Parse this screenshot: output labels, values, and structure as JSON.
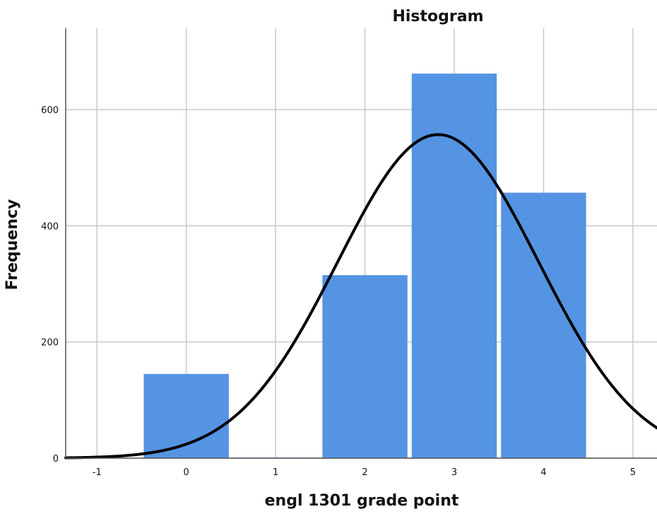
{
  "chart_data": {
    "type": "bar",
    "title": "Histogram",
    "xlabel": "engl 1301 grade point",
    "ylabel": "Frequency",
    "xlim": [
      -1.35,
      5.27
    ],
    "ylim": [
      0,
      740
    ],
    "xticks": [
      "-1",
      "0",
      "1",
      "2",
      "3",
      "4",
      "5"
    ],
    "yticks": [
      "0",
      "200",
      "400",
      "600"
    ],
    "categories": [
      "0",
      "1",
      "2",
      "3",
      "4"
    ],
    "values": [
      145,
      1,
      315,
      662,
      457
    ],
    "grid": true,
    "legend": "none",
    "curve": {
      "type": "normal",
      "mean": 2.82,
      "sd": 1.125,
      "peak": 557
    },
    "colors": {
      "bar": "#5594e3",
      "curve": "#000000",
      "grid": "#c8c8c8",
      "axis": "#555555"
    }
  }
}
